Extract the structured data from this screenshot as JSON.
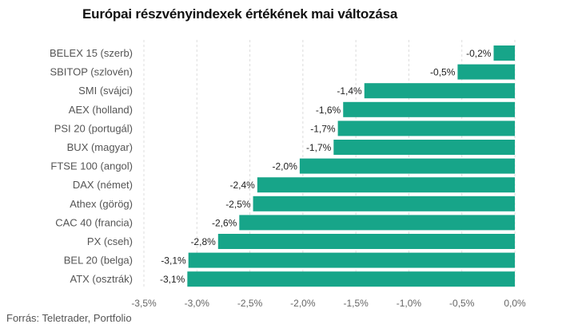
{
  "chart_data": {
    "type": "bar",
    "orientation": "horizontal",
    "title": "Európai részvényindexek értékének mai változása",
    "source": "Forrás: Teletrader, Portfolio",
    "bar_color": "#17a589",
    "xlim": [
      -3.5,
      0.0
    ],
    "ticks": [
      -3.5,
      -3.0,
      -2.5,
      -2.0,
      -1.5,
      -1.0,
      -0.5,
      0.0
    ],
    "tick_labels": [
      "-3,5%",
      "-3,0%",
      "-2,5%",
      "-2,0%",
      "-1,5%",
      "-1,0%",
      "-0,5%",
      "0,0%"
    ],
    "grid": true,
    "categories": [
      "BELEX 15 (szerb)",
      "SBITOP (szlovén)",
      "SMI (svájci)",
      "AEX (holland)",
      "PSI 20 (portugál)",
      "BUX (magyar)",
      "FTSE 100 (angol)",
      "DAX (német)",
      "Athex (görög)",
      "CAC 40 (francia)",
      "PX (cseh)",
      "BEL 20 (belga)",
      "ATX (osztrák)"
    ],
    "values": [
      -0.2,
      -0.54,
      -1.42,
      -1.62,
      -1.67,
      -1.71,
      -2.03,
      -2.43,
      -2.47,
      -2.6,
      -2.8,
      -3.08,
      -3.09
    ],
    "value_labels": [
      "-0,2%",
      "-0,5%",
      "-1,4%",
      "-1,6%",
      "-1,7%",
      "-1,7%",
      "-2,0%",
      "-2,4%",
      "-2,5%",
      "-2,6%",
      "-2,8%",
      "-3,1%",
      "-3,1%"
    ]
  }
}
